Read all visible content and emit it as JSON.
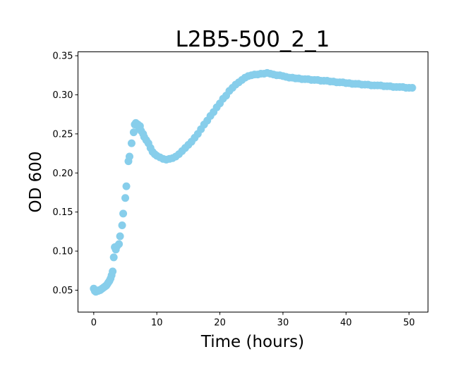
{
  "chart_data": {
    "type": "scatter",
    "title": "L2B5-500_2_1",
    "xlabel": "Time (hours)",
    "ylabel": "OD 600",
    "xlim": [
      -2.5,
      53
    ],
    "ylim": [
      0.022,
      0.355
    ],
    "xticks": [
      0,
      10,
      20,
      30,
      40,
      50
    ],
    "yticks": [
      0.05,
      0.1,
      0.15,
      0.2,
      0.25,
      0.3,
      0.35
    ],
    "ytick_labels": [
      "0.05",
      "0.10",
      "0.15",
      "0.20",
      "0.25",
      "0.30",
      "0.35"
    ],
    "grid": false,
    "marker_color": "#87CEEB",
    "points": [
      [
        0.0,
        0.052
      ],
      [
        0.17,
        0.049
      ],
      [
        0.33,
        0.048
      ],
      [
        0.5,
        0.049
      ],
      [
        0.67,
        0.049
      ],
      [
        0.83,
        0.05
      ],
      [
        1.0,
        0.05
      ],
      [
        1.17,
        0.051
      ],
      [
        1.33,
        0.052
      ],
      [
        1.5,
        0.053
      ],
      [
        1.67,
        0.054
      ],
      [
        1.83,
        0.055
      ],
      [
        2.0,
        0.056
      ],
      [
        2.17,
        0.058
      ],
      [
        2.33,
        0.06
      ],
      [
        2.5,
        0.062
      ],
      [
        2.67,
        0.065
      ],
      [
        2.83,
        0.069
      ],
      [
        3.0,
        0.074
      ],
      [
        3.17,
        0.092
      ],
      [
        3.33,
        0.105
      ],
      [
        3.5,
        0.102
      ],
      [
        3.67,
        0.106
      ],
      [
        4.0,
        0.109
      ],
      [
        4.17,
        0.119
      ],
      [
        4.5,
        0.133
      ],
      [
        4.67,
        0.148
      ],
      [
        5.0,
        0.168
      ],
      [
        5.17,
        0.183
      ],
      [
        5.5,
        0.215
      ],
      [
        5.67,
        0.221
      ],
      [
        6.0,
        0.238
      ],
      [
        6.33,
        0.252
      ],
      [
        6.5,
        0.262
      ],
      [
        6.67,
        0.264
      ],
      [
        7.0,
        0.262
      ],
      [
        7.17,
        0.258
      ],
      [
        7.33,
        0.26
      ],
      [
        7.5,
        0.254
      ],
      [
        7.83,
        0.25
      ],
      [
        8.0,
        0.246
      ],
      [
        8.33,
        0.242
      ],
      [
        8.67,
        0.238
      ],
      [
        9.0,
        0.232
      ],
      [
        9.33,
        0.227
      ],
      [
        9.67,
        0.224
      ],
      [
        10.0,
        0.222
      ],
      [
        10.5,
        0.22
      ],
      [
        11.0,
        0.218
      ],
      [
        11.5,
        0.217
      ],
      [
        12.0,
        0.218
      ],
      [
        12.5,
        0.219
      ],
      [
        13.0,
        0.221
      ],
      [
        13.5,
        0.224
      ],
      [
        14.0,
        0.228
      ],
      [
        14.5,
        0.232
      ],
      [
        15.0,
        0.236
      ],
      [
        15.5,
        0.24
      ],
      [
        16.0,
        0.245
      ],
      [
        16.5,
        0.25
      ],
      [
        17.0,
        0.256
      ],
      [
        17.5,
        0.262
      ],
      [
        18.0,
        0.267
      ],
      [
        18.5,
        0.273
      ],
      [
        19.0,
        0.278
      ],
      [
        19.5,
        0.284
      ],
      [
        20.0,
        0.289
      ],
      [
        20.5,
        0.295
      ],
      [
        21.0,
        0.299
      ],
      [
        21.5,
        0.305
      ],
      [
        22.0,
        0.309
      ],
      [
        22.5,
        0.313
      ],
      [
        23.0,
        0.316
      ],
      [
        23.5,
        0.319
      ],
      [
        24.0,
        0.322
      ],
      [
        24.5,
        0.324
      ],
      [
        25.0,
        0.325
      ],
      [
        25.5,
        0.326
      ],
      [
        26.0,
        0.326
      ],
      [
        26.5,
        0.327
      ],
      [
        27.0,
        0.327
      ],
      [
        27.5,
        0.328
      ],
      [
        28.0,
        0.327
      ],
      [
        28.5,
        0.326
      ],
      [
        29.0,
        0.325
      ],
      [
        29.5,
        0.325
      ],
      [
        30.0,
        0.324
      ],
      [
        30.5,
        0.323
      ],
      [
        31.0,
        0.322
      ],
      [
        31.5,
        0.322
      ],
      [
        32.0,
        0.321
      ],
      [
        32.5,
        0.321
      ],
      [
        33.0,
        0.32
      ],
      [
        33.5,
        0.32
      ],
      [
        34.0,
        0.32
      ],
      [
        34.5,
        0.319
      ],
      [
        35.0,
        0.319
      ],
      [
        35.5,
        0.319
      ],
      [
        36.0,
        0.318
      ],
      [
        36.5,
        0.318
      ],
      [
        37.0,
        0.318
      ],
      [
        37.5,
        0.317
      ],
      [
        38.0,
        0.317
      ],
      [
        38.5,
        0.316
      ],
      [
        39.0,
        0.316
      ],
      [
        39.5,
        0.316
      ],
      [
        40.0,
        0.315
      ],
      [
        40.5,
        0.315
      ],
      [
        41.0,
        0.314
      ],
      [
        41.5,
        0.314
      ],
      [
        42.0,
        0.314
      ],
      [
        42.5,
        0.313
      ],
      [
        43.0,
        0.313
      ],
      [
        43.5,
        0.313
      ],
      [
        44.0,
        0.312
      ],
      [
        44.5,
        0.312
      ],
      [
        45.0,
        0.312
      ],
      [
        45.5,
        0.312
      ],
      [
        46.0,
        0.311
      ],
      [
        46.5,
        0.311
      ],
      [
        47.0,
        0.311
      ],
      [
        47.5,
        0.31
      ],
      [
        48.0,
        0.31
      ],
      [
        48.5,
        0.31
      ],
      [
        49.0,
        0.31
      ],
      [
        49.5,
        0.309
      ],
      [
        50.0,
        0.309
      ],
      [
        50.5,
        0.309
      ]
    ]
  }
}
